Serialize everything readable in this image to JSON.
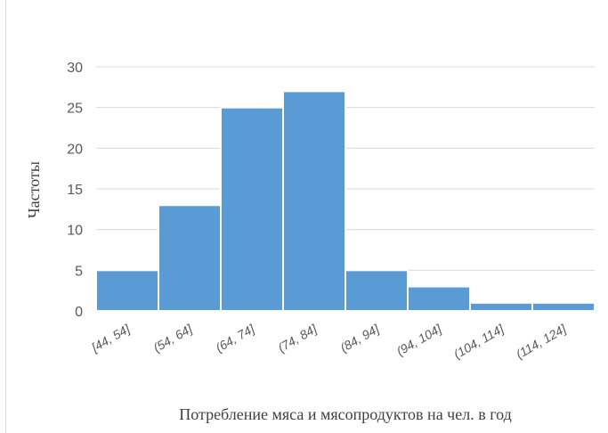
{
  "colors": {
    "bar": "#5b9bd5",
    "bar_stroke": "#ffffff",
    "grid": "#d9d9d9",
    "text": "#595959"
  },
  "chart_data": {
    "type": "bar",
    "categories": [
      "[44, 54]",
      "(54, 64]",
      "(64, 74]",
      "(74, 84]",
      "(84, 94]",
      "(94, 104]",
      "(104, 114]",
      "(114, 124]"
    ],
    "values": [
      5,
      13,
      25,
      27,
      5,
      3,
      1,
      1
    ],
    "title": "",
    "xlabel": "Потребление мяса и мясопродуктов на чел. в год",
    "ylabel": "Частоты",
    "ylim": [
      0,
      30
    ],
    "yticks": [
      0,
      5,
      10,
      15,
      20,
      25,
      30
    ],
    "grid": true,
    "legend": "none"
  }
}
